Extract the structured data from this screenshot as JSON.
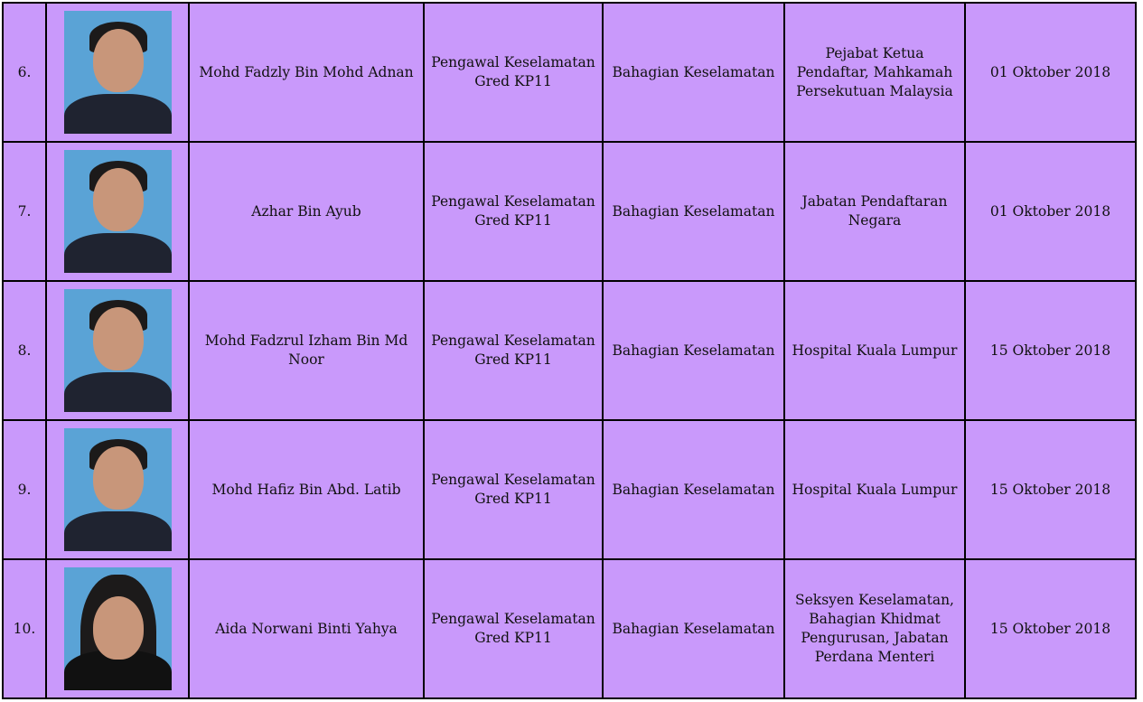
{
  "rows": [
    {
      "no": "6.",
      "name": "Mohd Fadzly Bin Mohd Adnan",
      "position": "Pengawal Keselamatan Gred KP11",
      "division": "Bahagian Keselamatan",
      "placement": "Pejabat Ketua Pendaftar, Mahkamah Persekutuan Malaysia",
      "date": "01 Oktober 2018",
      "photo": "male-suit"
    },
    {
      "no": "7.",
      "name": "Azhar Bin Ayub",
      "position": "Pengawal Keselamatan Gred KP11",
      "division": "Bahagian Keselamatan",
      "placement": "Jabatan Pendaftaran Negara",
      "date": "01 Oktober 2018",
      "photo": "male-uniform"
    },
    {
      "no": "8.",
      "name": "Mohd Fadzrul Izham Bin Md Noor",
      "position": "Pengawal Keselamatan Gred KP11",
      "division": "Bahagian Keselamatan",
      "placement": "Hospital Kuala Lumpur",
      "date": "15 Oktober 2018",
      "photo": "male-uniform"
    },
    {
      "no": "9.",
      "name": "Mohd Hafiz Bin Abd. Latib",
      "position": "Pengawal Keselamatan Gred KP11",
      "division": "Bahagian Keselamatan",
      "placement": "Hospital Kuala Lumpur",
      "date": "15 Oktober 2018",
      "photo": "male-uniform"
    },
    {
      "no": "10.",
      "name": "Aida Norwani Binti Yahya",
      "position": "Pengawal Keselamatan Gred KP11",
      "division": "Bahagian Keselamatan",
      "placement": "Seksyen Keselamatan, Bahagian Khidmat Pengurusan, Jabatan Perdana Menteri",
      "date": "15 Oktober 2018",
      "photo": "female-hijab"
    }
  ],
  "colors": {
    "cell_bg": "#c999fb",
    "border": "#000000",
    "spellcheck": "#e0303a"
  }
}
